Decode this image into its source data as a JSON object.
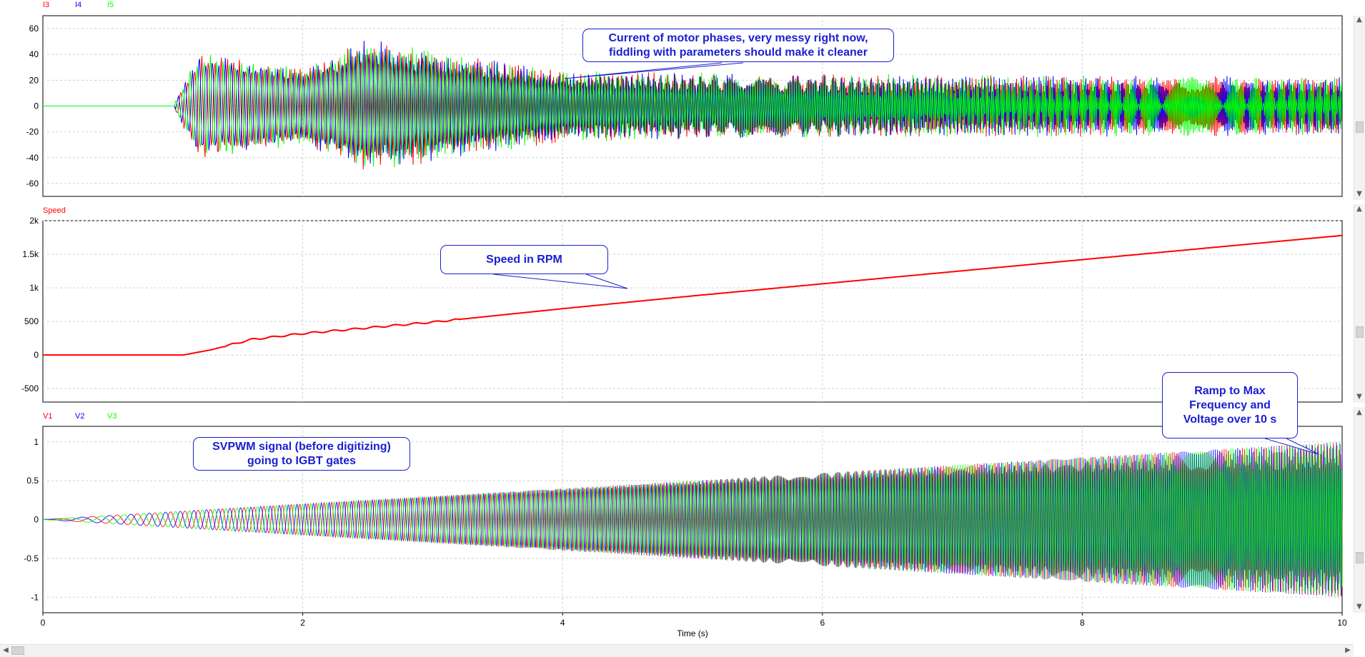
{
  "chart_data": [
    {
      "type": "line",
      "legend": [
        "I3",
        "I4",
        "I5"
      ],
      "ylim": [
        -70,
        70
      ],
      "yticks": [
        "60",
        "40",
        "20",
        "0",
        "-20",
        "-40",
        "-60"
      ],
      "ytick_values": [
        60,
        40,
        20,
        0,
        -20,
        -40,
        -60
      ],
      "xlim": [
        0,
        10
      ],
      "series": [
        {
          "name": "I3",
          "color": "#ff0000",
          "values_start_s": 1.02,
          "x": [
            0,
            1.0,
            1.2,
            2.0,
            2.5,
            4.0,
            6.0,
            8.0,
            10.0
          ],
          "envelope": [
            0,
            0,
            42,
            30,
            52,
            28,
            25,
            24,
            23
          ]
        },
        {
          "name": "I4",
          "color": "#0000ff",
          "values_start_s": 1.02,
          "x": [
            0,
            1.0,
            1.2,
            2.0,
            2.5,
            4.0,
            6.0,
            8.0,
            10.0
          ],
          "envelope": [
            0,
            0,
            42,
            30,
            52,
            28,
            25,
            24,
            23
          ]
        },
        {
          "name": "I5",
          "color": "#00ff00",
          "values_start_s": 1.02,
          "x": [
            0,
            1.0,
            1.2,
            2.0,
            2.5,
            4.0,
            6.0,
            8.0,
            10.0
          ],
          "envelope": [
            0,
            0,
            42,
            30,
            52,
            28,
            25,
            24,
            23
          ]
        }
      ],
      "annotation": "Current of motor phases, very messy right now,\nfiddling with parameters should make it cleaner"
    },
    {
      "type": "line",
      "legend": [
        "Speed"
      ],
      "ylim": [
        -700,
        2000
      ],
      "yticks": [
        "2k",
        "1.5k",
        "1k",
        "500",
        "0",
        "-500"
      ],
      "ytick_values": [
        2000,
        1500,
        1000,
        500,
        0,
        -500
      ],
      "xlim": [
        0,
        10
      ],
      "series": [
        {
          "name": "Speed",
          "color": "#ff0000",
          "x": [
            0,
            1.08,
            1.3,
            1.6,
            2.0,
            3.0,
            4.0,
            5.0,
            6.0,
            7.0,
            8.0,
            9.0,
            10.0
          ],
          "y": [
            0,
            0,
            80,
            230,
            320,
            490,
            690,
            880,
            1060,
            1240,
            1420,
            1600,
            1780
          ]
        }
      ],
      "annotation": "Speed in RPM"
    },
    {
      "type": "line",
      "legend": [
        "V1",
        "V2",
        "V3"
      ],
      "ylim": [
        -1.2,
        1.2
      ],
      "yticks": [
        "1",
        "0.5",
        "0",
        "-0.5",
        "-1"
      ],
      "ytick_values": [
        1,
        0.5,
        0,
        -0.5,
        -1
      ],
      "xlim": [
        0,
        10
      ],
      "xticks": [
        "0",
        "2",
        "4",
        "6",
        "8",
        "10"
      ],
      "xtick_values": [
        0,
        2,
        4,
        6,
        8,
        10
      ],
      "xlabel": "Time (s)",
      "series": [
        {
          "name": "V1",
          "color": "#ff0000",
          "amplitude_at_x": [
            [
              0,
              0
            ],
            [
              10,
              1.0
            ]
          ]
        },
        {
          "name": "V2",
          "color": "#0000ff",
          "amplitude_at_x": [
            [
              0,
              0
            ],
            [
              10,
              1.0
            ]
          ]
        },
        {
          "name": "V3",
          "color": "#00ff00",
          "amplitude_at_x": [
            [
              0,
              0
            ],
            [
              10,
              1.0
            ]
          ]
        }
      ],
      "annotations": [
        "SVPWM signal (before digitizing)\ngoing to IGBT gates",
        "Ramp to Max\nFrequency and\nVoltage over 10 s"
      ]
    }
  ]
}
